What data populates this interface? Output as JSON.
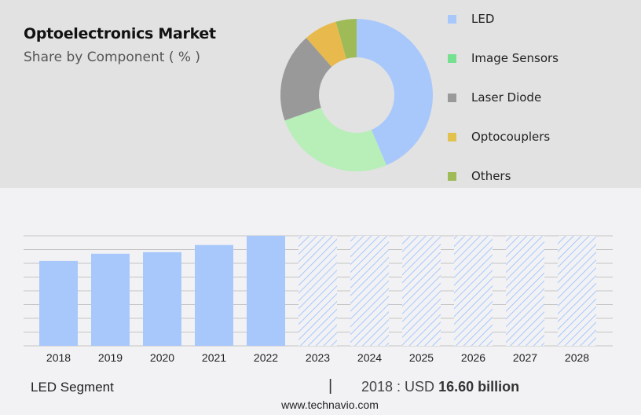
{
  "header": {
    "title": "Optoelectronics Market",
    "subtitle": "Share by Component ( % )"
  },
  "legend": [
    {
      "label": "LED",
      "color": "#a8c8fc"
    },
    {
      "label": "Image Sensors",
      "color": "#74e090"
    },
    {
      "label": "Laser Diode",
      "color": "#999999"
    },
    {
      "label": "Optocouplers",
      "color": "#e2c24e"
    },
    {
      "label": "Others",
      "color": "#9fbb58"
    }
  ],
  "footer": {
    "segment_label": "LED Segment",
    "separator": "|",
    "year_prefix": "2018 : USD ",
    "value": "16.60 billion",
    "url": "www.technavio.com"
  },
  "chart_data": [
    {
      "type": "pie",
      "subtype": "donut",
      "title": "Optoelectronics Market",
      "subtitle": "Share by Component ( % )",
      "categories": [
        "LED",
        "Image Sensors",
        "Laser Diode",
        "Optocouplers",
        "Others"
      ],
      "values": [
        43.6,
        26.0,
        18.9,
        7.1,
        4.4
      ],
      "colors": [
        "#a8c8fc",
        "#b8eeb8",
        "#999999",
        "#e8b94c",
        "#9fbb58"
      ],
      "legend_position": "right"
    },
    {
      "type": "bar",
      "title": "LED Segment",
      "categories": [
        "2018",
        "2019",
        "2020",
        "2021",
        "2022",
        "2023",
        "2024",
        "2025",
        "2026",
        "2027",
        "2028"
      ],
      "values": [
        16.6,
        18.0,
        18.3,
        19.7,
        21.5,
        null,
        null,
        null,
        null,
        null,
        null
      ],
      "forecast": [
        false,
        false,
        false,
        false,
        false,
        true,
        true,
        true,
        true,
        true,
        true
      ],
      "bar_color": "#a8c8fc",
      "forecast_style": "hatched",
      "xlabel": "",
      "ylabel": "",
      "grid": true,
      "annotation": "2018 : USD 16.60 billion"
    }
  ]
}
